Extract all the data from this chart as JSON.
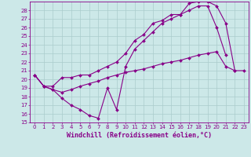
{
  "background_color": "#cce8e8",
  "grid_color": "#aacccc",
  "line_color": "#880088",
  "marker": "D",
  "markersize": 2.0,
  "linewidth": 0.8,
  "xlabel": "Windchill (Refroidissement éolien,°C)",
  "xlabel_fontsize": 6.0,
  "tick_fontsize": 5.0,
  "xlim": [
    -0.5,
    23.5
  ],
  "ylim": [
    15,
    29
  ],
  "yticks": [
    15,
    16,
    17,
    18,
    19,
    20,
    21,
    22,
    23,
    24,
    25,
    26,
    27,
    28
  ],
  "xticks": [
    0,
    1,
    2,
    3,
    4,
    5,
    6,
    7,
    8,
    9,
    10,
    11,
    12,
    13,
    14,
    15,
    16,
    17,
    18,
    19,
    20,
    21,
    22,
    23
  ],
  "s1_x": [
    0,
    1,
    2,
    3,
    4,
    5,
    6,
    7,
    8,
    9,
    10,
    11,
    12,
    13,
    14,
    15,
    16,
    17,
    18,
    19,
    20,
    21
  ],
  "s1_y": [
    20.5,
    19.2,
    18.8,
    17.8,
    17.0,
    16.5,
    15.8,
    15.5,
    19.0,
    16.5,
    21.5,
    23.5,
    24.5,
    25.5,
    26.5,
    27.0,
    27.5,
    28.0,
    28.5,
    28.5,
    26.0,
    22.8
  ],
  "s2_x": [
    0,
    1,
    2,
    3,
    4,
    5,
    6,
    7,
    8,
    9,
    10,
    11,
    12,
    13,
    14,
    15,
    16,
    17,
    18,
    19,
    20,
    21,
    22
  ],
  "s2_y": [
    20.5,
    19.2,
    19.2,
    20.2,
    20.2,
    20.5,
    20.5,
    21.0,
    21.5,
    22.0,
    23.0,
    24.5,
    25.2,
    26.5,
    26.8,
    27.5,
    27.5,
    28.8,
    29.0,
    29.0,
    28.5,
    26.5,
    21.0
  ],
  "s3_x": [
    0,
    1,
    2,
    3,
    4,
    5,
    6,
    7,
    8,
    9,
    10,
    11,
    12,
    13,
    14,
    15,
    16,
    17,
    18,
    19,
    20,
    21,
    22,
    23
  ],
  "s3_y": [
    20.5,
    19.2,
    18.8,
    18.5,
    18.8,
    19.2,
    19.5,
    19.8,
    20.2,
    20.5,
    20.8,
    21.0,
    21.2,
    21.5,
    21.8,
    22.0,
    22.2,
    22.5,
    22.8,
    23.0,
    23.2,
    21.5,
    21.0,
    21.0
  ]
}
